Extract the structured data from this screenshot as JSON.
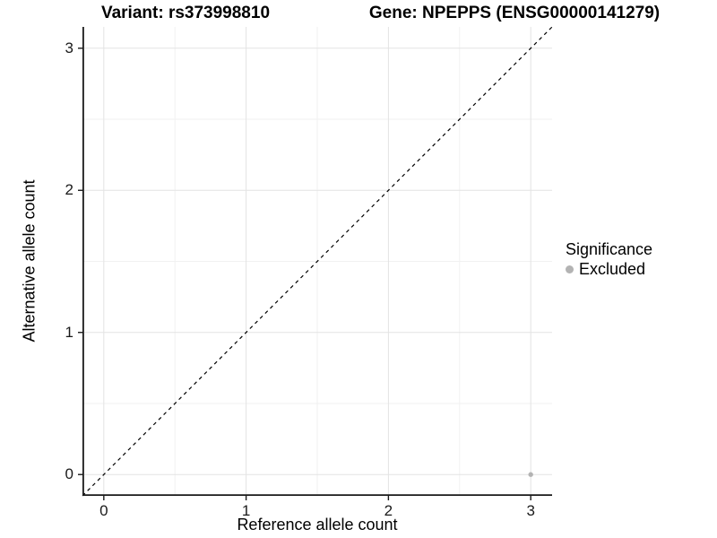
{
  "titles": {
    "left": "Variant: rs373998810",
    "right": "Gene: NPEPPS (ENSG00000141279)"
  },
  "legend": {
    "title": "Significance",
    "items": [
      {
        "label": "Excluded",
        "color": "#b3b3b3"
      }
    ]
  },
  "chart_data": {
    "type": "scatter",
    "title_left": "Variant: rs373998810",
    "title_right": "Gene: NPEPPS (ENSG00000141279)",
    "xlabel": "Reference allele count",
    "ylabel": "Alternative allele count",
    "xlim": [
      -0.15,
      3.15
    ],
    "ylim": [
      -0.15,
      3.15
    ],
    "x_ticks": [
      0,
      1,
      2,
      3
    ],
    "y_ticks": [
      0,
      1,
      2,
      3
    ],
    "x_minor_ticks": [
      0.5,
      1.5,
      2.5
    ],
    "y_minor_ticks": [
      0.5,
      1.5,
      2.5
    ],
    "grid": true,
    "legend_position": "right",
    "series": [
      {
        "name": "Excluded",
        "color": "#b3b3b3",
        "points": [
          {
            "x": 3,
            "y": 0
          }
        ]
      }
    ],
    "reference_line": {
      "slope": 1,
      "intercept": 0,
      "linestyle": "dashed",
      "color": "#000000"
    }
  },
  "colors": {
    "background": "#ffffff",
    "grid_major": "#e3e3e3",
    "grid_minor": "#f1f1f1",
    "axis": "#1a1a1a",
    "point": "#b3b3b3"
  }
}
